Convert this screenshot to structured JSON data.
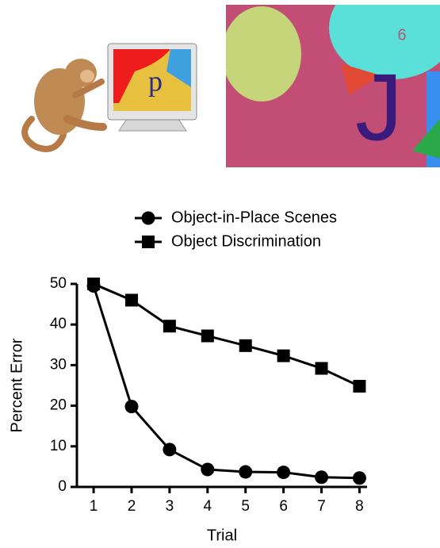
{
  "stimuli": {
    "monitor_letter": "p",
    "scene_number": "6",
    "scene_letter": "J"
  },
  "chart_data": {
    "type": "line",
    "x": [
      1,
      2,
      3,
      4,
      5,
      6,
      7,
      8
    ],
    "series": [
      {
        "name": "Object-in-Place Scenes",
        "marker": "circle",
        "color": "#000000",
        "values": [
          49.5,
          19.8,
          9.2,
          4.3,
          3.7,
          3.6,
          2.4,
          2.2
        ]
      },
      {
        "name": "Object Discrimination",
        "marker": "square",
        "color": "#000000",
        "values": [
          50,
          46,
          39.6,
          37.2,
          34.8,
          32.3,
          29.2,
          24.8
        ]
      }
    ],
    "xlabel": "Trial",
    "ylabel": "Percent Error",
    "xlim": [
      0.56,
      8.2
    ],
    "xticks": [
      1,
      2,
      3,
      4,
      5,
      6,
      7,
      8
    ],
    "ylim": [
      0,
      50
    ],
    "yticks": [
      0,
      10,
      20,
      30,
      40,
      50
    ],
    "legend": "top"
  }
}
